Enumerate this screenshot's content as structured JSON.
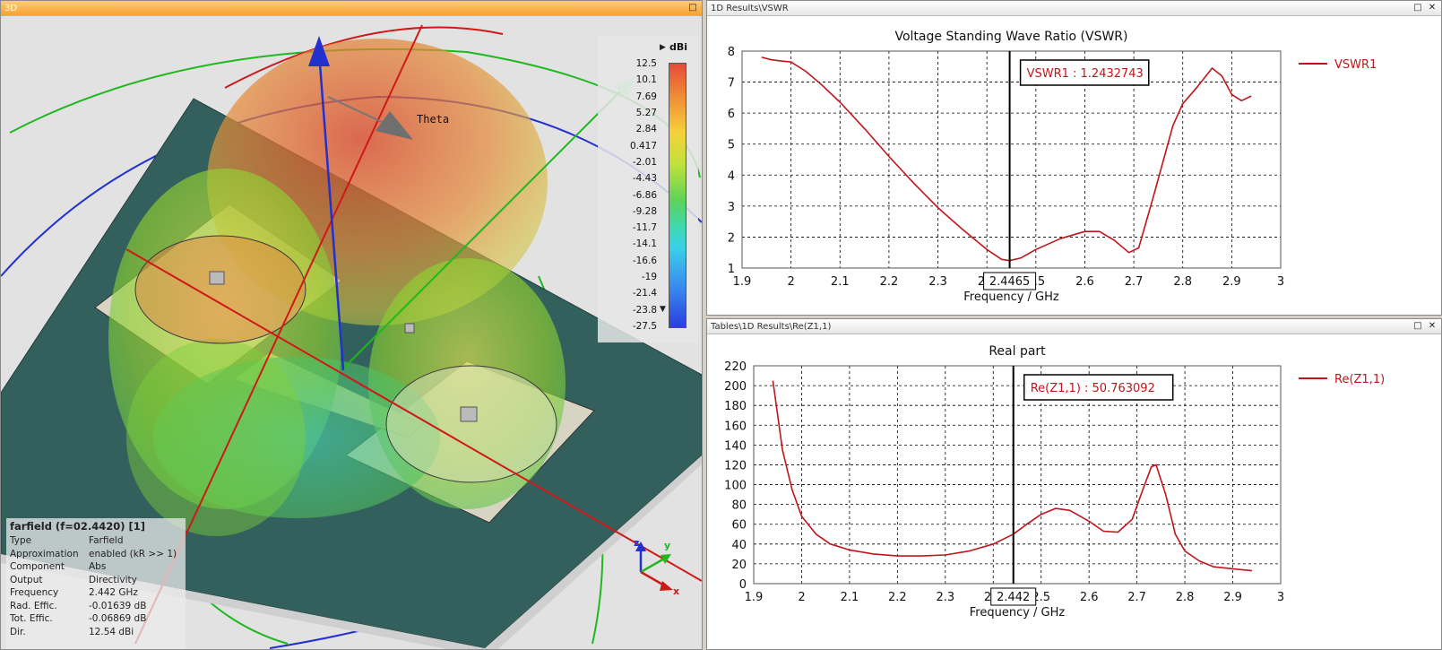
{
  "panels": {
    "three_d": {
      "title": "3D"
    },
    "vswr": {
      "title": "1D Results\\VSWR"
    },
    "rez": {
      "title": "Tables\\1D Results\\Re(Z1,1)"
    }
  },
  "viewport": {
    "theta_label": "Theta",
    "axes": {
      "x": "x",
      "y": "y",
      "z": "z"
    },
    "legend": {
      "unit": "dBi",
      "ticks": [
        "12.5",
        "10.1",
        "7.69",
        "5.27",
        "2.84",
        "0.417",
        "-2.01",
        "-4.43",
        "-6.86",
        "-9.28",
        "-11.7",
        "-14.1",
        "-16.6",
        "-19",
        "-21.4",
        "-23.8",
        "-27.5"
      ]
    },
    "info": {
      "header": "farfield (f=02.4420) [1]",
      "rows": [
        {
          "k": "Type",
          "v": "Farfield"
        },
        {
          "k": "Approximation",
          "v": "enabled (kR >> 1)"
        },
        {
          "k": "Component",
          "v": "Abs"
        },
        {
          "k": "Output",
          "v": "Directivity"
        },
        {
          "k": "Frequency",
          "v": "2.442 GHz"
        },
        {
          "k": "Rad. Effic.",
          "v": "-0.01639 dB"
        },
        {
          "k": "Tot. Effic.",
          "v": "-0.06869 dB"
        },
        {
          "k": "Dir.",
          "v": "12.54 dBi"
        }
      ]
    },
    "colors": {
      "ground": "#33605c",
      "patch": "#d8d4c4",
      "pattern_red": "#d9552a",
      "pattern_green": "#8fd030"
    }
  },
  "chart_data": [
    {
      "type": "line",
      "title": "Voltage Standing Wave Ratio (VSWR)",
      "xlabel": "Frequency / GHz",
      "ylabel": "",
      "xlim": [
        1.9,
        3
      ],
      "ylim": [
        1,
        8
      ],
      "xticks": [
        "1.9",
        "2",
        "2.1",
        "2.2",
        "2.3",
        "2.4",
        "2.5",
        "2.6",
        "2.7",
        "2.8",
        "2.9",
        "3"
      ],
      "yticks": [
        "1",
        "2",
        "3",
        "4",
        "5",
        "6",
        "7",
        "8"
      ],
      "grid": true,
      "legend_position": "right",
      "series": [
        {
          "name": "VSWR1",
          "color": "#c0151b",
          "x": [
            1.94,
            1.96,
            1.98,
            2.0,
            2.03,
            2.06,
            2.1,
            2.15,
            2.2,
            2.25,
            2.3,
            2.35,
            2.4,
            2.43,
            2.4465,
            2.47,
            2.5,
            2.55,
            2.6,
            2.63,
            2.66,
            2.69,
            2.71,
            2.74,
            2.78,
            2.8,
            2.83,
            2.86,
            2.88,
            2.9,
            2.92,
            2.94
          ],
          "values": [
            7.8,
            7.72,
            7.68,
            7.65,
            7.35,
            6.95,
            6.35,
            5.5,
            4.6,
            3.75,
            2.95,
            2.25,
            1.6,
            1.28,
            1.24,
            1.33,
            1.6,
            1.95,
            2.18,
            2.18,
            1.9,
            1.5,
            1.65,
            3.3,
            5.6,
            6.3,
            6.85,
            7.45,
            7.2,
            6.6,
            6.4,
            6.55
          ]
        }
      ],
      "marker": {
        "x": 2.4465,
        "x_label": "2.4465",
        "label": "VSWR1 : 1.2432743"
      }
    },
    {
      "type": "line",
      "title": "Real part",
      "xlabel": "Frequency / GHz",
      "ylabel": "",
      "xlim": [
        1.9,
        3
      ],
      "ylim": [
        0,
        220
      ],
      "xticks": [
        "1.9",
        "2",
        "2.1",
        "2.2",
        "2.3",
        "2.4",
        "2.5",
        "2.6",
        "2.7",
        "2.8",
        "2.9",
        "3"
      ],
      "yticks": [
        "0",
        "20",
        "40",
        "60",
        "80",
        "100",
        "120",
        "140",
        "160",
        "180",
        "200",
        "220"
      ],
      "grid": true,
      "legend_position": "right",
      "series": [
        {
          "name": "Re(Z1,1)",
          "color": "#c0151b",
          "x": [
            1.94,
            1.96,
            1.98,
            2.0,
            2.03,
            2.06,
            2.1,
            2.15,
            2.2,
            2.25,
            2.3,
            2.35,
            2.4,
            2.442,
            2.47,
            2.5,
            2.53,
            2.56,
            2.6,
            2.63,
            2.66,
            2.69,
            2.71,
            2.73,
            2.74,
            2.76,
            2.78,
            2.8,
            2.83,
            2.86,
            2.9,
            2.94
          ],
          "values": [
            205,
            135,
            95,
            68,
            50,
            40,
            34,
            30,
            28,
            28,
            29,
            33,
            40,
            50,
            60,
            70,
            76,
            74,
            63,
            53,
            52,
            65,
            92,
            118,
            120,
            90,
            50,
            33,
            23,
            17,
            15,
            13
          ]
        }
      ],
      "marker": {
        "x": 2.442,
        "x_label": "2.442",
        "label": "Re(Z1,1) : 50.763092"
      }
    }
  ]
}
